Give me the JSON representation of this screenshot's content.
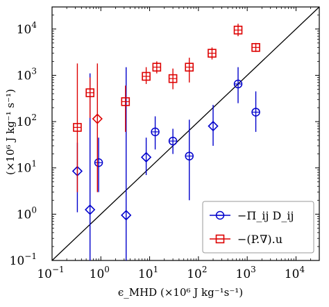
{
  "chart_data": {
    "type": "scatter",
    "xscale": "log",
    "yscale": "log",
    "xlim": [
      0.1,
      30000
    ],
    "ylim": [
      0.1,
      30000
    ],
    "xlabel": "ϵ_MHD (×10⁶ J kg⁻¹s⁻¹)",
    "ylabel": "(×10⁶ J kg⁻¹ s⁻¹)",
    "x_ticks": [
      {
        "value": 0.1,
        "label": "10",
        "exp": "−1"
      },
      {
        "value": 1,
        "label": "10",
        "exp": "0"
      },
      {
        "value": 10,
        "label": "10",
        "exp": "1"
      },
      {
        "value": 100,
        "label": "10",
        "exp": "2"
      },
      {
        "value": 1000,
        "label": "10",
        "exp": "3"
      },
      {
        "value": 10000,
        "label": "10",
        "exp": "4"
      }
    ],
    "y_ticks": [
      {
        "value": 0.1,
        "label": "10",
        "exp": "−1"
      },
      {
        "value": 1,
        "label": "10",
        "exp": "0"
      },
      {
        "value": 10,
        "label": "10",
        "exp": "1"
      },
      {
        "value": 100,
        "label": "10",
        "exp": "2"
      },
      {
        "value": 1000,
        "label": "10",
        "exp": "3"
      },
      {
        "value": 10000,
        "label": "10",
        "exp": "4"
      }
    ],
    "reference_line": "y = x",
    "grid": false,
    "legend_position": "bottom-right",
    "series": [
      {
        "name": "−Π_ij D_ij",
        "color": "#0000cc",
        "marker": "circle-plus",
        "points": [
          {
            "x": 650,
            "y": 650,
            "ylo": 250,
            "yhi": 1500,
            "marker": "circle-plus"
          },
          {
            "x": 1500,
            "y": 160,
            "ylo": 60,
            "yhi": 450,
            "marker": "circle-plus"
          },
          {
            "x": 13,
            "y": 60,
            "ylo": 25,
            "yhi": 130,
            "marker": "circle-plus"
          },
          {
            "x": 30,
            "y": 38,
            "ylo": 20,
            "yhi": 70,
            "marker": "circle-plus"
          },
          {
            "x": 65,
            "y": 18,
            "ylo": 2,
            "yhi": 110,
            "marker": "circle-plus"
          },
          {
            "x": 0.9,
            "y": 13,
            "ylo": 3,
            "yhi": 45,
            "marker": "circle-plus"
          },
          {
            "x": 200,
            "y": 80,
            "ylo": 30,
            "yhi": 230,
            "marker": "diamond"
          },
          {
            "x": 8.5,
            "y": 17,
            "ylo": 7,
            "yhi": 45,
            "marker": "diamond"
          },
          {
            "x": 0.33,
            "y": 8.5,
            "ylo": 1.1,
            "yhi": 35,
            "marker": "diamond"
          },
          {
            "x": 0.6,
            "y": 1.25,
            "ylo": 0.1,
            "yhi": 1100,
            "marker": "diamond"
          },
          {
            "x": 3.3,
            "y": 0.95,
            "ylo": 0.1,
            "yhi": 1500,
            "marker": "diamond"
          }
        ]
      },
      {
        "name": "−(P.∇).u",
        "color": "#dd0000",
        "marker": "square-plus",
        "points": [
          {
            "x": 650,
            "y": 9500,
            "ylo": 7000,
            "yhi": 13000,
            "marker": "square-plus"
          },
          {
            "x": 1500,
            "y": 4000,
            "ylo": 3200,
            "yhi": 5000,
            "marker": "square-plus"
          },
          {
            "x": 190,
            "y": 3000,
            "ylo": 2200,
            "yhi": 4000,
            "marker": "square-plus"
          },
          {
            "x": 65,
            "y": 1500,
            "ylo": 700,
            "yhi": 2400,
            "marker": "square-plus"
          },
          {
            "x": 30,
            "y": 850,
            "ylo": 500,
            "yhi": 1400,
            "marker": "square-plus"
          },
          {
            "x": 14,
            "y": 1500,
            "ylo": 1100,
            "yhi": 2000,
            "marker": "square-plus"
          },
          {
            "x": 8.5,
            "y": 950,
            "ylo": 650,
            "yhi": 1500,
            "marker": "square-plus"
          },
          {
            "x": 3.2,
            "y": 270,
            "ylo": 60,
            "yhi": 600,
            "marker": "square-plus"
          },
          {
            "x": 0.6,
            "y": 420,
            "ylo": 120,
            "yhi": 900,
            "marker": "square-plus"
          },
          {
            "x": 0.33,
            "y": 75,
            "ylo": 3,
            "yhi": 1800,
            "marker": "square-plus"
          },
          {
            "x": 0.85,
            "y": 115,
            "ylo": 3,
            "yhi": 1800,
            "marker": "diamond"
          }
        ]
      }
    ]
  }
}
